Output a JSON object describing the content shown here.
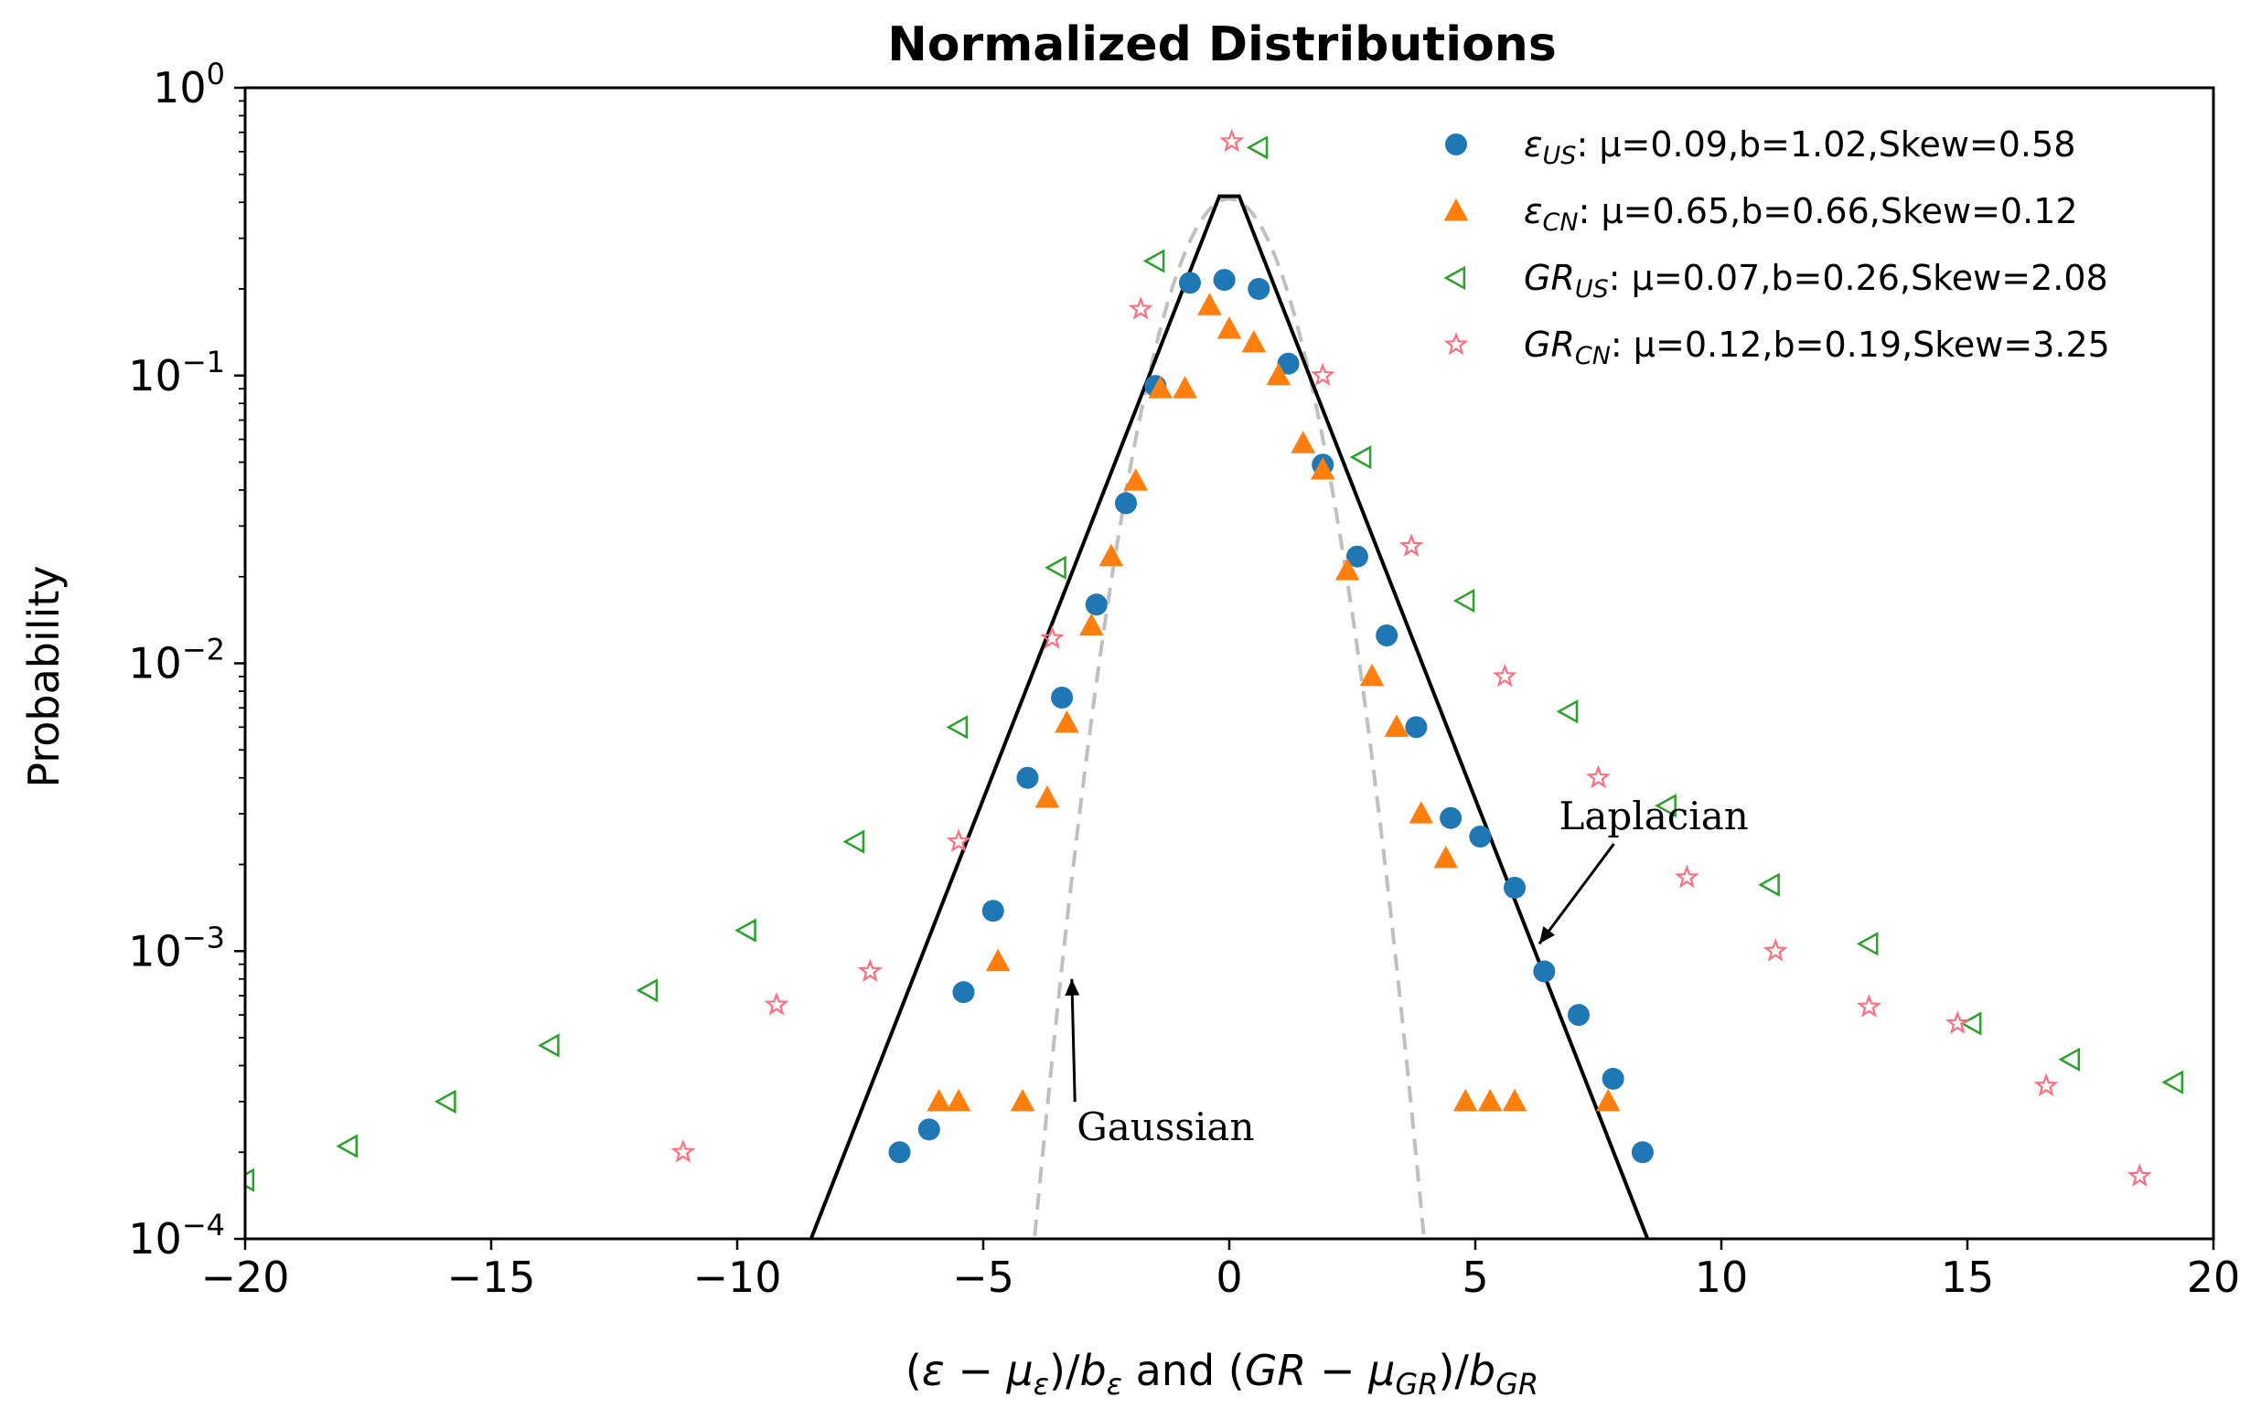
{
  "chart_data": {
    "type": "scatter",
    "title": "Normalized Distributions",
    "xlabel": "(ε − μ_ε)/b_ε and (GR − μ_GR)/b_GR",
    "ylabel": "Probability",
    "xlim": [
      -20,
      20
    ],
    "ylim": [
      0.0001,
      1
    ],
    "yscale": "log",
    "grid": false,
    "legend_position": "top-right",
    "x_ticks": [
      -20,
      -15,
      -10,
      -5,
      0,
      5,
      10,
      15,
      20
    ],
    "x_tick_labels": [
      "−20",
      "−15",
      "−10",
      "−5",
      "0",
      "5",
      "10",
      "15",
      "20"
    ],
    "y_ticks": [
      {
        "value": 1,
        "base": "10",
        "exp": "0"
      },
      {
        "value": 0.1,
        "base": "10",
        "exp": "−1"
      },
      {
        "value": 0.01,
        "base": "10",
        "exp": "−2"
      },
      {
        "value": 0.001,
        "base": "10",
        "exp": "−3"
      },
      {
        "value": 0.0001,
        "base": "10",
        "exp": "−4"
      }
    ],
    "series": [
      {
        "name": "ε_US: μ=0.09,b=1.02,Skew=0.58",
        "label": {
          "sym": "ε",
          "sub": "US",
          "rest": ": μ=0.09,b=1.02,Skew=0.58"
        },
        "marker": "circle",
        "color": "#1f77b4",
        "points": [
          [
            -6.7,
            0.0002
          ],
          [
            -6.1,
            0.00024
          ],
          [
            -5.4,
            0.00072
          ],
          [
            -4.8,
            0.00138
          ],
          [
            -4.1,
            0.004
          ],
          [
            -3.4,
            0.0076
          ],
          [
            -2.7,
            0.016
          ],
          [
            -2.1,
            0.036
          ],
          [
            -1.5,
            0.092
          ],
          [
            -0.8,
            0.21
          ],
          [
            -0.1,
            0.215
          ],
          [
            0.6,
            0.2
          ],
          [
            1.2,
            0.11
          ],
          [
            1.9,
            0.049
          ],
          [
            2.6,
            0.0235
          ],
          [
            3.2,
            0.0125
          ],
          [
            3.8,
            0.006
          ],
          [
            4.5,
            0.0029
          ],
          [
            5.1,
            0.0025
          ],
          [
            5.8,
            0.00166
          ],
          [
            6.4,
            0.00085
          ],
          [
            7.1,
            0.0006
          ],
          [
            7.8,
            0.00036
          ],
          [
            8.4,
            0.0002
          ]
        ]
      },
      {
        "name": "ε_CN: μ=0.65,b=0.66,Skew=0.12",
        "label": {
          "sym": "ε",
          "sub": "CN",
          "rest": ": μ=0.65,b=0.66,Skew=0.12"
        },
        "marker": "triangle-up",
        "color": "#ff7f0e",
        "points": [
          [
            -5.9,
            0.0003
          ],
          [
            -5.5,
            0.0003
          ],
          [
            -4.2,
            0.0003
          ],
          [
            -4.7,
            0.00092
          ],
          [
            -3.7,
            0.0034
          ],
          [
            -3.3,
            0.0062
          ],
          [
            -2.8,
            0.0135
          ],
          [
            -2.4,
            0.0235
          ],
          [
            -1.9,
            0.043
          ],
          [
            -1.4,
            0.09
          ],
          [
            -0.9,
            0.09
          ],
          [
            -0.4,
            0.175
          ],
          [
            0,
            0.145
          ],
          [
            0.5,
            0.13
          ],
          [
            1.0,
            0.1
          ],
          [
            1.5,
            0.058
          ],
          [
            1.9,
            0.047
          ],
          [
            2.4,
            0.021
          ],
          [
            2.9,
            0.009
          ],
          [
            3.4,
            0.006
          ],
          [
            3.9,
            0.003
          ],
          [
            4.4,
            0.0021
          ],
          [
            4.8,
            0.0003
          ],
          [
            5.3,
            0.0003
          ],
          [
            5.8,
            0.0003
          ],
          [
            7.7,
            0.0003
          ]
        ]
      },
      {
        "name": "GR_US: μ=0.07,b=0.26,Skew=2.08",
        "label": {
          "sym": "GR",
          "sub": "US",
          "rest": ": μ=0.07,b=0.26,Skew=2.08"
        },
        "marker": "triangle-left",
        "color": "#2ca02c",
        "points": [
          [
            -20,
            0.00016
          ],
          [
            -17.9,
            0.00021
          ],
          [
            -15.9,
            0.0003
          ],
          [
            -13.8,
            0.00047
          ],
          [
            -11.8,
            0.00073
          ],
          [
            -9.8,
            0.00118
          ],
          [
            -7.6,
            0.0024
          ],
          [
            -5.5,
            0.006
          ],
          [
            -3.5,
            0.0215
          ],
          [
            -1.5,
            0.25
          ],
          [
            0.6,
            0.62
          ],
          [
            2.7,
            0.052
          ],
          [
            4.8,
            0.0165
          ],
          [
            6.9,
            0.0068
          ],
          [
            8.9,
            0.0032
          ],
          [
            11,
            0.0017
          ],
          [
            13,
            0.00106
          ],
          [
            15.1,
            0.00056
          ],
          [
            17.1,
            0.00042
          ],
          [
            19.2,
            0.00035
          ]
        ]
      },
      {
        "name": "GR_CN: μ=0.12,b=0.19,Skew=3.25",
        "label": {
          "sym": "GR",
          "sub": "CN",
          "rest": ": μ=0.12,b=0.19,Skew=3.25"
        },
        "marker": "star",
        "color": "#ff6f7f",
        "points": [
          [
            -11.1,
            0.0002
          ],
          [
            -9.2,
            0.00065
          ],
          [
            -7.3,
            0.00085
          ],
          [
            -5.5,
            0.0024
          ],
          [
            -3.6,
            0.0122
          ],
          [
            -1.8,
            0.17
          ],
          [
            0.05,
            0.65
          ],
          [
            1.9,
            0.1
          ],
          [
            3.7,
            0.0255
          ],
          [
            5.6,
            0.009
          ],
          [
            7.5,
            0.004
          ],
          [
            9.3,
            0.0018
          ],
          [
            11.1,
            0.001
          ],
          [
            13,
            0.00064
          ],
          [
            14.8,
            0.00056
          ],
          [
            16.6,
            0.00034
          ],
          [
            18.5,
            0.000165
          ]
        ]
      }
    ],
    "curves": [
      {
        "name": "Laplacian",
        "style": "solid",
        "color": "#000000",
        "points": [
          [
            -8.5,
            0.0001
          ],
          [
            -0.2,
            0.42
          ],
          [
            0.2,
            0.42
          ],
          [
            8.5,
            0.0001
          ]
        ]
      },
      {
        "name": "Gaussian",
        "style": "dashed",
        "color": "#c0c0c0",
        "sigma": 0.97,
        "range": [
          -4.1,
          4.1
        ]
      }
    ],
    "annotations": [
      {
        "text": "Laplacian",
        "text_at": [
          6.7,
          0.00265
        ],
        "arrow_to": [
          6.3,
          0.00106
        ]
      },
      {
        "text": "Gaussian",
        "text_at": [
          -3.1,
          0.00022
        ],
        "arrow_to": [
          -3.2,
          0.0008
        ]
      }
    ]
  }
}
